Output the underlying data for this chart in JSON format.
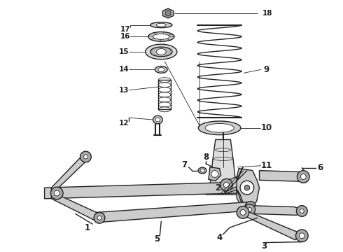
{
  "bg_color": "#ffffff",
  "line_color": "#222222",
  "fig_width": 4.9,
  "fig_height": 3.6,
  "dpi": 100,
  "font_size": 7.5
}
